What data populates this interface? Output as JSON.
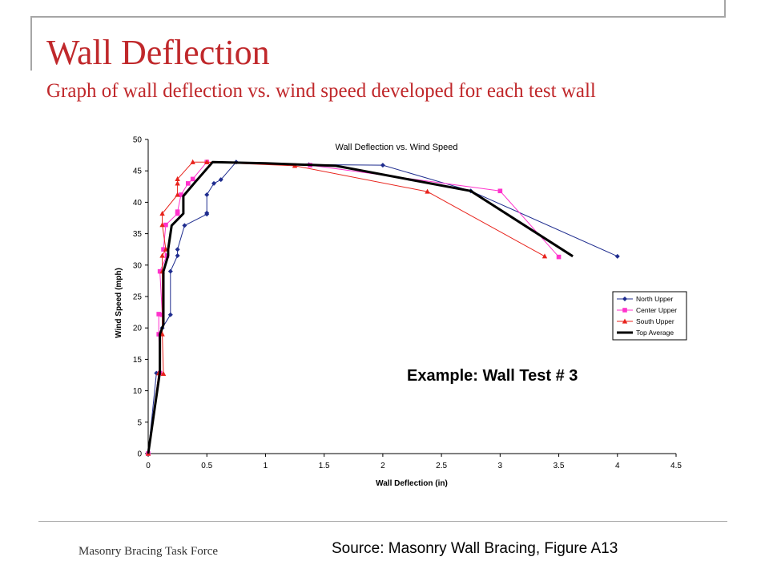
{
  "slide": {
    "title": "Wall Deflection",
    "subtitle": "Graph of wall deflection vs. wind speed developed for each test wall",
    "footer_left": "Masonry Bracing Task Force",
    "source": "Source: Masonry Wall Bracing, Figure A13",
    "example_label": "Example: Wall Test # 3"
  },
  "chart_data": {
    "type": "line",
    "title": "Wall Deflection vs. Wind Speed",
    "xlabel": "Wall Deflection (in)",
    "ylabel": "Wind Speed (mph)",
    "xlim": [
      0,
      4.5
    ],
    "ylim": [
      0,
      50
    ],
    "x_ticks": [
      "0",
      "0.5",
      "1",
      "1.5",
      "2",
      "2.5",
      "3",
      "3.5",
      "4",
      "4.5"
    ],
    "y_ticks": [
      "0",
      "5",
      "10",
      "15",
      "20",
      "25",
      "30",
      "35",
      "40",
      "45",
      "50"
    ],
    "grid": false,
    "legend_position": "right",
    "series": [
      {
        "name": "North Upper",
        "color": "#1f2d8f",
        "marker": "diamond",
        "points": [
          [
            0,
            0
          ],
          [
            0.07,
            12.8
          ],
          [
            0.1,
            13.0
          ],
          [
            0.1,
            19.0
          ],
          [
            0.12,
            20.0
          ],
          [
            0.19,
            22.1
          ],
          [
            0.19,
            29.0
          ],
          [
            0.25,
            31.5
          ],
          [
            0.25,
            32.5
          ],
          [
            0.31,
            36.3
          ],
          [
            0.5,
            38.1
          ],
          [
            0.5,
            38.3
          ],
          [
            0.5,
            41.2
          ],
          [
            0.56,
            43.0
          ],
          [
            0.62,
            43.6
          ],
          [
            0.75,
            46.4
          ],
          [
            1.37,
            46.0
          ],
          [
            2.0,
            45.9
          ],
          [
            2.75,
            41.8
          ],
          [
            4.0,
            31.4
          ]
        ]
      },
      {
        "name": "Center Upper",
        "color": "#ff33cc",
        "marker": "square",
        "points": [
          [
            0,
            0
          ],
          [
            0.1,
            12.8
          ],
          [
            0.09,
            19.0
          ],
          [
            0.09,
            22.2
          ],
          [
            0.12,
            22.1
          ],
          [
            0.1,
            29.0
          ],
          [
            0.16,
            31.5
          ],
          [
            0.13,
            32.5
          ],
          [
            0.15,
            36.4
          ],
          [
            0.25,
            38.2
          ],
          [
            0.25,
            38.5
          ],
          [
            0.28,
            41.2
          ],
          [
            0.34,
            43.0
          ],
          [
            0.38,
            43.7
          ],
          [
            0.5,
            46.4
          ],
          [
            1.38,
            45.9
          ],
          [
            3.0,
            41.8
          ],
          [
            3.5,
            31.3
          ]
        ]
      },
      {
        "name": "South Upper",
        "color": "#e8231c",
        "marker": "triangle",
        "points": [
          [
            0,
            0
          ],
          [
            0.09,
            12.8
          ],
          [
            0.13,
            12.7
          ],
          [
            0.12,
            19.0
          ],
          [
            0.12,
            29.0
          ],
          [
            0.12,
            31.5
          ],
          [
            0.15,
            32.5
          ],
          [
            0.12,
            36.4
          ],
          [
            0.12,
            38.2
          ],
          [
            0.25,
            41.2
          ],
          [
            0.25,
            43.0
          ],
          [
            0.25,
            43.7
          ],
          [
            0.38,
            46.4
          ],
          [
            0.5,
            46.4
          ],
          [
            1.25,
            45.8
          ],
          [
            2.38,
            41.7
          ],
          [
            3.38,
            31.4
          ]
        ]
      },
      {
        "name": "Top Average",
        "color": "#000000",
        "marker": "none",
        "points": [
          [
            0,
            0
          ],
          [
            0.1,
            13.0
          ],
          [
            0.1,
            19.0
          ],
          [
            0.13,
            20.5
          ],
          [
            0.13,
            29.0
          ],
          [
            0.17,
            31.5
          ],
          [
            0.17,
            32.5
          ],
          [
            0.2,
            36.3
          ],
          [
            0.3,
            38.2
          ],
          [
            0.3,
            41.0
          ],
          [
            0.4,
            43.2
          ],
          [
            0.55,
            46.4
          ],
          [
            1.0,
            46.2
          ],
          [
            1.6,
            45.8
          ],
          [
            2.75,
            41.8
          ],
          [
            3.62,
            31.4
          ]
        ]
      }
    ]
  }
}
